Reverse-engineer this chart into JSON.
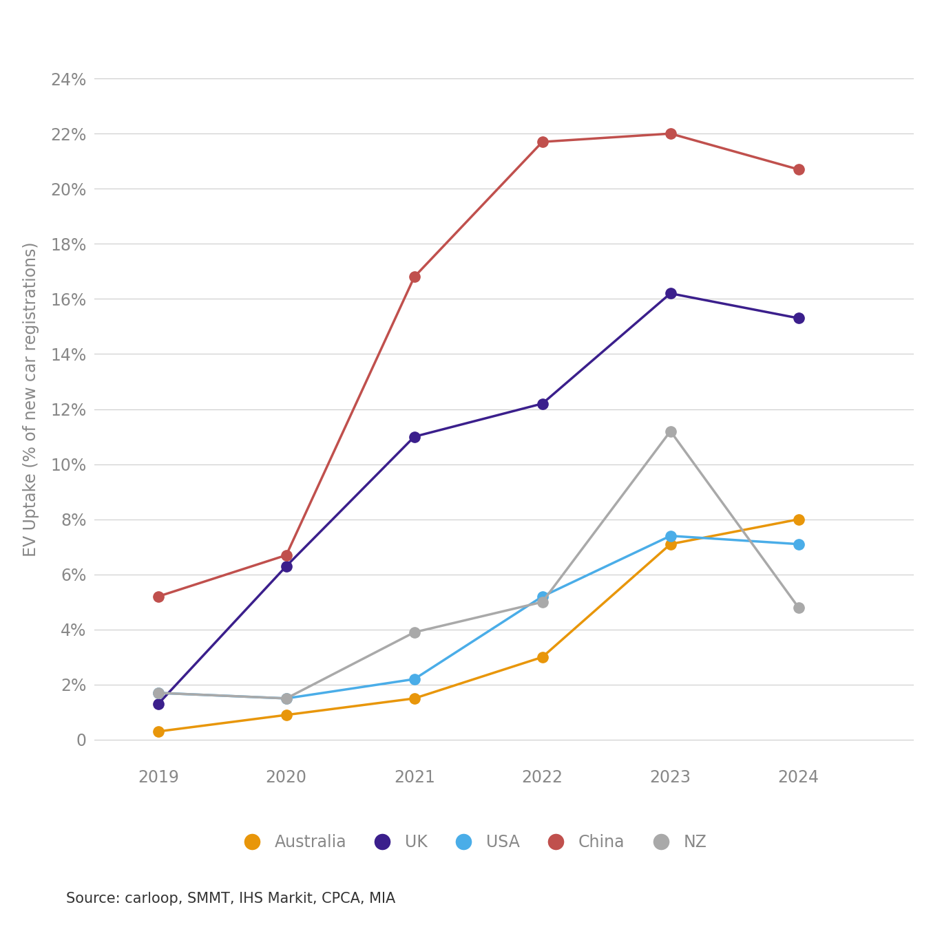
{
  "years": [
    2019,
    2020,
    2021,
    2022,
    2023,
    2024
  ],
  "series": {
    "Australia": {
      "values": [
        0.3,
        0.9,
        1.5,
        3.0,
        7.1,
        8.0
      ],
      "color": "#E8960A"
    },
    "UK": {
      "values": [
        1.3,
        6.3,
        11.0,
        12.2,
        16.2,
        15.3
      ],
      "color": "#3B1F8C"
    },
    "USA": {
      "values": [
        1.7,
        1.5,
        2.2,
        5.2,
        7.4,
        7.1
      ],
      "color": "#4AADE8"
    },
    "China": {
      "values": [
        5.2,
        6.7,
        16.8,
        21.7,
        22.0,
        20.7
      ],
      "color": "#C0504D"
    },
    "NZ": {
      "values": [
        1.7,
        1.5,
        3.9,
        5.0,
        11.2,
        4.8
      ],
      "color": "#A9A9A9"
    }
  },
  "ylabel": "EV Uptake (% of new car registrations)",
  "yticks": [
    0,
    2,
    4,
    6,
    8,
    10,
    12,
    14,
    16,
    18,
    20,
    22,
    24
  ],
  "ytick_labels": [
    "0",
    "2%",
    "4%",
    "6%",
    "8%",
    "10%",
    "12%",
    "14%",
    "16%",
    "18%",
    "20%",
    "22%",
    "24%"
  ],
  "ylim": [
    -0.8,
    25.5
  ],
  "xlim": [
    2018.5,
    2024.9
  ],
  "source_text": "Source: carloop, SMMT, IHS Markit, CPCA, MIA",
  "background_color": "#FFFFFF",
  "grid_color": "#CCCCCC",
  "tick_color": "#999999",
  "label_color": "#888888",
  "marker_size": 11,
  "line_width": 2.5,
  "legend_order": [
    "Australia",
    "UK",
    "USA",
    "China",
    "NZ"
  ],
  "logo_bg_color": "#5B2D8E"
}
